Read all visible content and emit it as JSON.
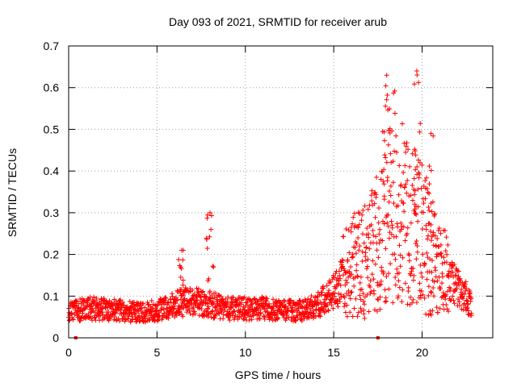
{
  "chart_data": {
    "type": "scatter",
    "title": "Day 093 of 2021, SRMTID for receiver arub",
    "xlabel": "GPS time / hours",
    "ylabel": "SRMTID / TECUs",
    "xlim": [
      0,
      24
    ],
    "ylim": [
      0,
      0.7
    ],
    "xticks": [
      0,
      5,
      10,
      15,
      20
    ],
    "yticks": [
      0,
      0.1,
      0.2,
      0.3,
      0.4,
      0.5,
      0.6,
      0.7
    ],
    "xtick_labels": [
      "0",
      "5",
      "10",
      "15",
      "20"
    ],
    "ytick_labels": [
      "0",
      "0.1",
      "0.2",
      "0.3",
      "0.4",
      "0.5",
      "0.6",
      "0.7"
    ],
    "grid": true,
    "marker": "+",
    "series_color": "#ff0000",
    "data_range_hours": [
      0,
      22.8
    ],
    "baseline_markers_x": [
      0.4,
      17.5
    ],
    "spikes": [
      {
        "x": 6.4,
        "y": 0.21
      },
      {
        "x": 8.0,
        "y": 0.3
      },
      {
        "x": 18.0,
        "y": 0.63
      },
      {
        "x": 19.7,
        "y": 0.64
      },
      {
        "x": 20.5,
        "y": 0.49
      }
    ],
    "envelope": [
      {
        "x": 0.0,
        "y": 0.06
      },
      {
        "x": 1.0,
        "y": 0.07
      },
      {
        "x": 2.0,
        "y": 0.07
      },
      {
        "x": 3.0,
        "y": 0.065
      },
      {
        "x": 4.0,
        "y": 0.06
      },
      {
        "x": 5.0,
        "y": 0.065
      },
      {
        "x": 6.0,
        "y": 0.08
      },
      {
        "x": 7.0,
        "y": 0.09
      },
      {
        "x": 8.0,
        "y": 0.08
      },
      {
        "x": 9.0,
        "y": 0.07
      },
      {
        "x": 10.0,
        "y": 0.07
      },
      {
        "x": 11.0,
        "y": 0.07
      },
      {
        "x": 12.0,
        "y": 0.065
      },
      {
        "x": 13.0,
        "y": 0.065
      },
      {
        "x": 14.0,
        "y": 0.075
      },
      {
        "x": 15.0,
        "y": 0.11
      },
      {
        "x": 16.0,
        "y": 0.17
      },
      {
        "x": 17.0,
        "y": 0.19
      },
      {
        "x": 17.5,
        "y": 0.23
      },
      {
        "x": 18.0,
        "y": 0.33
      },
      {
        "x": 18.5,
        "y": 0.34
      },
      {
        "x": 19.0,
        "y": 0.28
      },
      {
        "x": 19.5,
        "y": 0.27
      },
      {
        "x": 20.0,
        "y": 0.24
      },
      {
        "x": 20.5,
        "y": 0.2
      },
      {
        "x": 21.0,
        "y": 0.16
      },
      {
        "x": 21.5,
        "y": 0.14
      },
      {
        "x": 22.0,
        "y": 0.12
      },
      {
        "x": 22.8,
        "y": 0.08
      }
    ]
  }
}
